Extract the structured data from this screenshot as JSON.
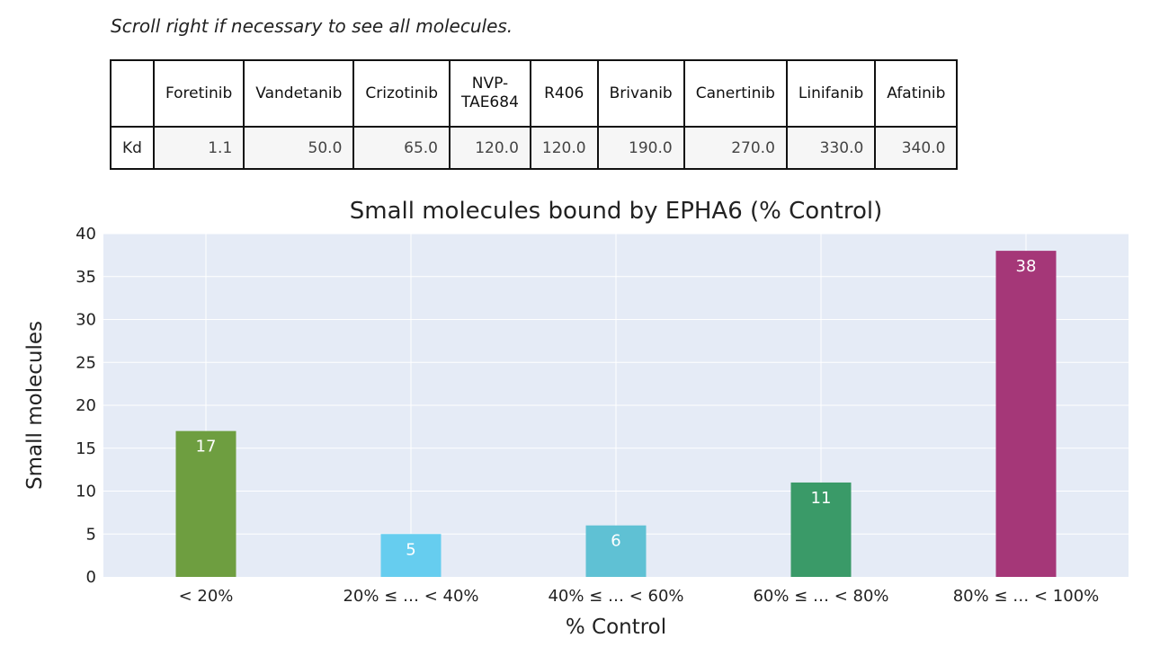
{
  "note": "Scroll right if necessary to see all molecules.",
  "table": {
    "row_label": "Kd",
    "columns": [
      {
        "name": "Foretinib",
        "value": "1.1"
      },
      {
        "name": "Vandetanib",
        "value": "50.0"
      },
      {
        "name": "Crizotinib",
        "value": "65.0"
      },
      {
        "name": "NVP-\nTAE684",
        "value": "120.0"
      },
      {
        "name": "R406",
        "value": "120.0"
      },
      {
        "name": "Brivanib",
        "value": "190.0"
      },
      {
        "name": "Canertinib",
        "value": "270.0"
      },
      {
        "name": "Linifanib",
        "value": "330.0"
      },
      {
        "name": "Afatinib",
        "value": "340.0"
      }
    ]
  },
  "chart_data": {
    "type": "bar",
    "title": "Small molecules bound by EPHA6 (% Control)",
    "xlabel": "% Control",
    "ylabel": "Small molecules",
    "categories": [
      "< 20%",
      "20% ≤ … < 40%",
      "40% ≤ … < 60%",
      "60% ≤ … < 80%",
      "80% ≤ … < 100%"
    ],
    "values": [
      17,
      5,
      6,
      11,
      38
    ],
    "colors": [
      "#6e9e40",
      "#66cdef",
      "#5fc1d4",
      "#3a9a68",
      "#a53778"
    ],
    "ylim": [
      0,
      40
    ],
    "yticks": [
      0,
      5,
      10,
      15,
      20,
      25,
      30,
      35,
      40
    ],
    "grid": true,
    "plot_background": "#e5ebf6"
  }
}
